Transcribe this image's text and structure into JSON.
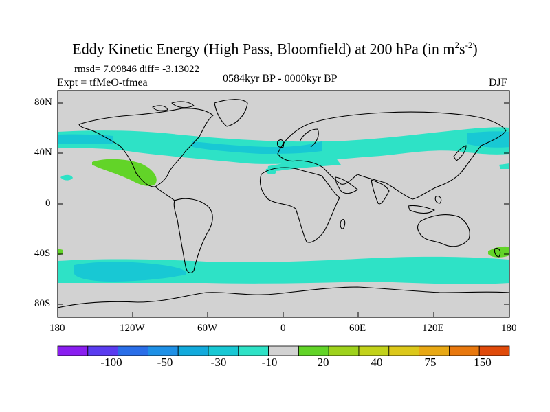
{
  "title": {
    "main": "Eddy Kinetic Energy (High Pass, Bloomfield) at 200 hPa (in m",
    "sup1": "2",
    "mid": "s",
    "sup2": "-2",
    "close": ")"
  },
  "stats": "rmsd= 7.09846 diff= -3.13022",
  "experiment": "Expt = tfMeO-tfmea",
  "period": "0584kyr BP - 0000kyr BP",
  "season": "DJF",
  "lat_ticks": [
    "80N",
    "40N",
    "0",
    "40S",
    "80S"
  ],
  "lon_ticks": [
    "180",
    "120W",
    "60W",
    "0",
    "60E",
    "120E",
    "180"
  ],
  "colorbar": {
    "colors": [
      "#8a1ef0",
      "#5a3cf0",
      "#2a6ee8",
      "#1e90e6",
      "#12aadc",
      "#18c8d4",
      "#2ee2c6",
      "#d2d2d2",
      "#62d428",
      "#9ed21c",
      "#c2d21a",
      "#dcc81a",
      "#e8a814",
      "#e8780e",
      "#e04a0a"
    ],
    "labels": [
      "-100",
      "-50",
      "-30",
      "-10",
      "20",
      "40",
      "75",
      "150"
    ]
  },
  "colors": {
    "land_sea_bg": "#d2d2d2",
    "band_light": "#2ee2c6",
    "band_dark": "#18c8d4",
    "positive": "#62d428"
  }
}
